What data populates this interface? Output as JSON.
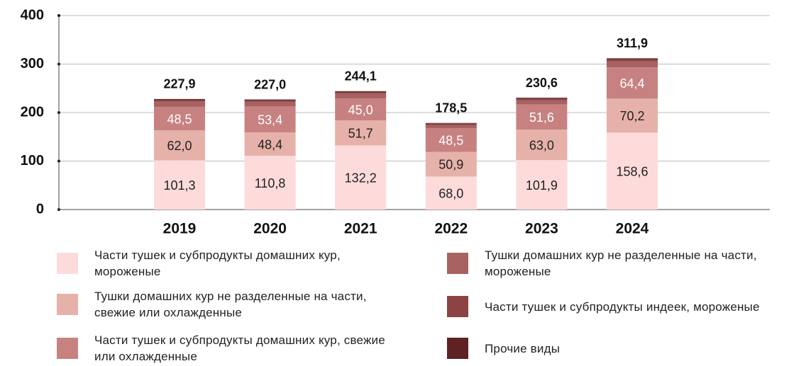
{
  "chart_data": {
    "type": "stacked_bar",
    "categories": [
      "2019",
      "2020",
      "2021",
      "2022",
      "2023",
      "2024"
    ],
    "series": [
      {
        "name": "Части тушек и субпродукты домашних кур, мороженые",
        "color": "#fddbdb",
        "values": [
          101.3,
          110.8,
          132.2,
          68.0,
          101.9,
          158.6
        ],
        "value_labels": [
          "101,3",
          "110,8",
          "132,2",
          "68,0",
          "101,9",
          "158,6"
        ]
      },
      {
        "name": "Тушки домашних кур не разделенные на части, свежие или охлажденные",
        "color": "#e6b1a9",
        "values": [
          62.0,
          48.4,
          51.7,
          50.9,
          63.0,
          70.2
        ],
        "value_labels": [
          "62,0",
          "48,4",
          "51,7",
          "50,9",
          "63,0",
          "70,2"
        ]
      },
      {
        "name": "Части тушек и субпродукты домашних кур, свежие или охлажденные",
        "color": "#c78181",
        "values": [
          48.5,
          53.4,
          45.0,
          48.5,
          51.6,
          64.4
        ],
        "value_labels": [
          "48,5",
          "53,4",
          "45,0",
          "48,5",
          "51,6",
          "64,4"
        ]
      },
      {
        "name": "Тушки домашних кур не разделенные на части, мороженые",
        "color": "#a86262",
        "values": [
          11.0,
          9.5,
          10.0,
          7.0,
          9.0,
          12.5
        ]
      },
      {
        "name": "Части тушек и субпродукты индеек, мороженые",
        "color": "#8b4343",
        "values": [
          3.5,
          3.4,
          3.5,
          2.6,
          3.4,
          4.0
        ]
      },
      {
        "name": "Прочие виды",
        "color": "#5e2222",
        "values": [
          1.6,
          1.5,
          1.7,
          1.5,
          1.7,
          2.2
        ]
      }
    ],
    "totals": {
      "values": [
        227.9,
        227.0,
        244.1,
        178.5,
        230.6,
        311.9
      ],
      "value_labels": [
        "227,9",
        "227,0",
        "244,1",
        "178,5",
        "230,6",
        "311,9"
      ]
    },
    "ylim": [
      0,
      400
    ],
    "yticks": [
      0,
      100,
      200,
      300,
      400
    ],
    "grid": true
  }
}
